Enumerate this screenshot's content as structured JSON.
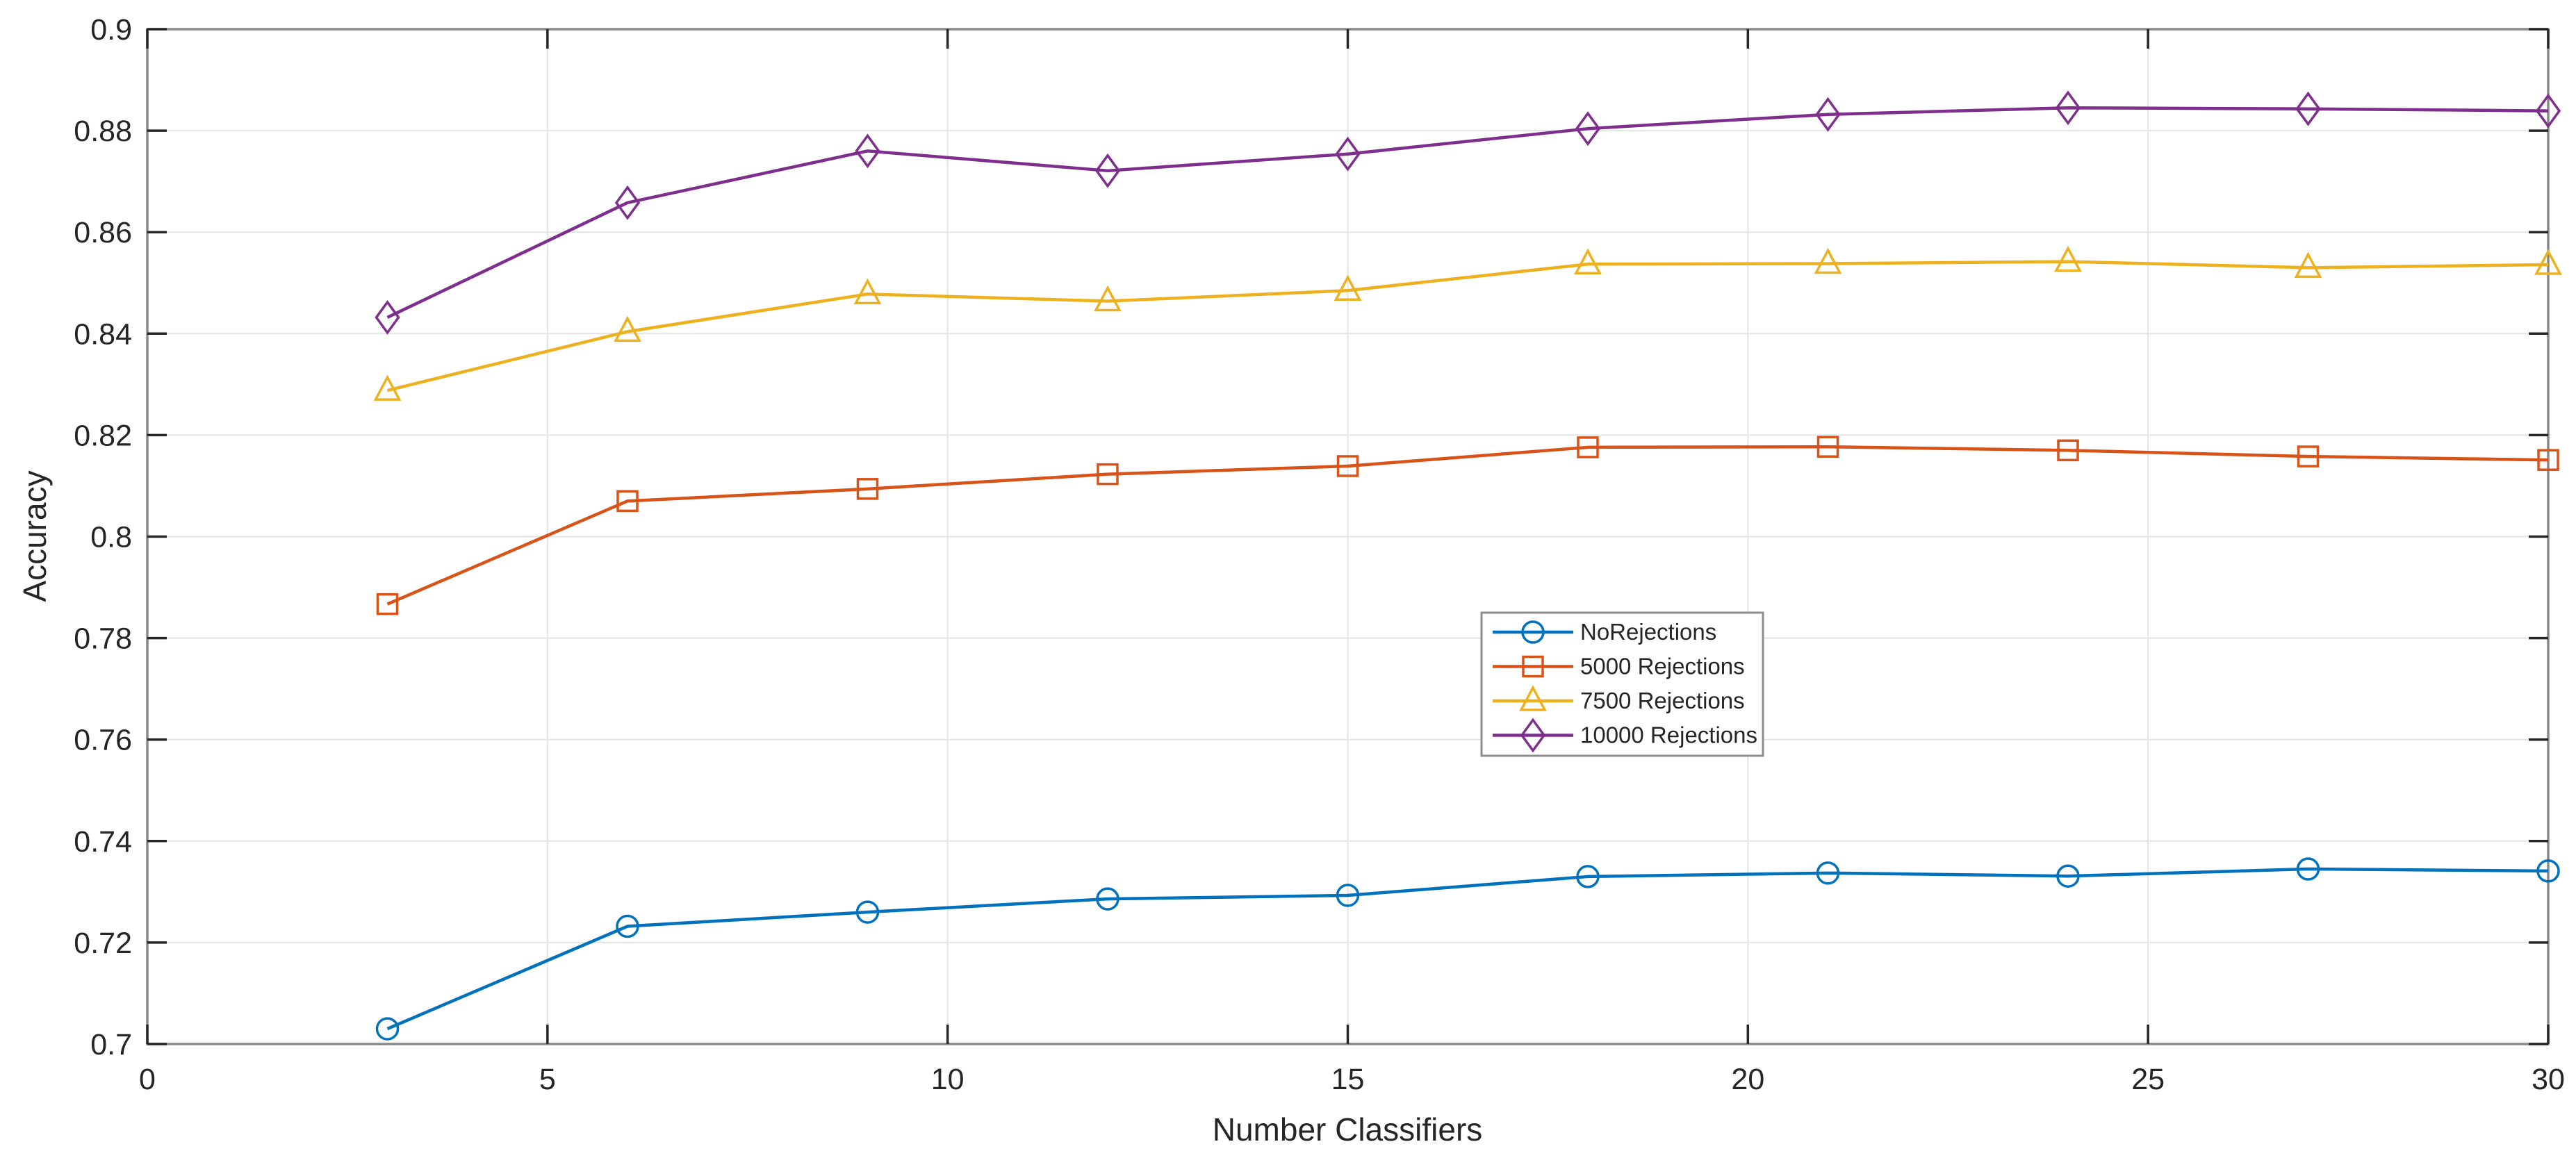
{
  "chart_data": {
    "type": "line",
    "title": "",
    "xlabel": "Number Classifiers",
    "ylabel": "Accuracy",
    "xlim": [
      0,
      30
    ],
    "ylim": [
      0.7,
      0.9
    ],
    "grid": true,
    "legend_position": "inside-center-right",
    "x_ticks": [
      0,
      5,
      10,
      15,
      20,
      25,
      30
    ],
    "x_tick_labels": [
      "0",
      "5",
      "10",
      "15",
      "20",
      "25",
      "30"
    ],
    "y_ticks": [
      0.7,
      0.72,
      0.74,
      0.76,
      0.78,
      0.8,
      0.82,
      0.84,
      0.86,
      0.88,
      0.9
    ],
    "y_tick_labels": [
      "0.7",
      "0.72",
      "0.74",
      "0.76",
      "0.78",
      "0.8",
      "0.82",
      "0.84",
      "0.86",
      "0.88",
      "0.9"
    ],
    "x": [
      3,
      6,
      9,
      12,
      15,
      18,
      21,
      24,
      27,
      30
    ],
    "series": [
      {
        "name": "NoRejections",
        "color": "#0072BD",
        "marker": "circle",
        "values": [
          0.703,
          0.7232,
          0.726,
          0.7286,
          0.7293,
          0.733,
          0.7337,
          0.7331,
          0.7345,
          0.7341
        ]
      },
      {
        "name": "5000 Rejections",
        "color": "#D95319",
        "marker": "square",
        "values": [
          0.7867,
          0.807,
          0.8094,
          0.8123,
          0.8139,
          0.8176,
          0.8177,
          0.817,
          0.8158,
          0.8151
        ]
      },
      {
        "name": "7500 Rejections",
        "color": "#EDB120",
        "marker": "triangle",
        "values": [
          0.8288,
          0.8404,
          0.8478,
          0.8464,
          0.8485,
          0.8537,
          0.8538,
          0.8542,
          0.853,
          0.8536
        ]
      },
      {
        "name": "10000 Rejections",
        "color": "#7E2F8E",
        "marker": "diamond",
        "values": [
          0.8432,
          0.8658,
          0.876,
          0.8721,
          0.8754,
          0.8804,
          0.8832,
          0.8845,
          0.8843,
          0.8839
        ]
      }
    ],
    "colors": {
      "background": "#FFFFFF",
      "axis_box": "#898989",
      "tick_mark": "#262626",
      "grid": "#E4E4E4",
      "text": "#252525",
      "legend_border": "#8C8C8C",
      "legend_background": "#FFFFFF"
    }
  }
}
